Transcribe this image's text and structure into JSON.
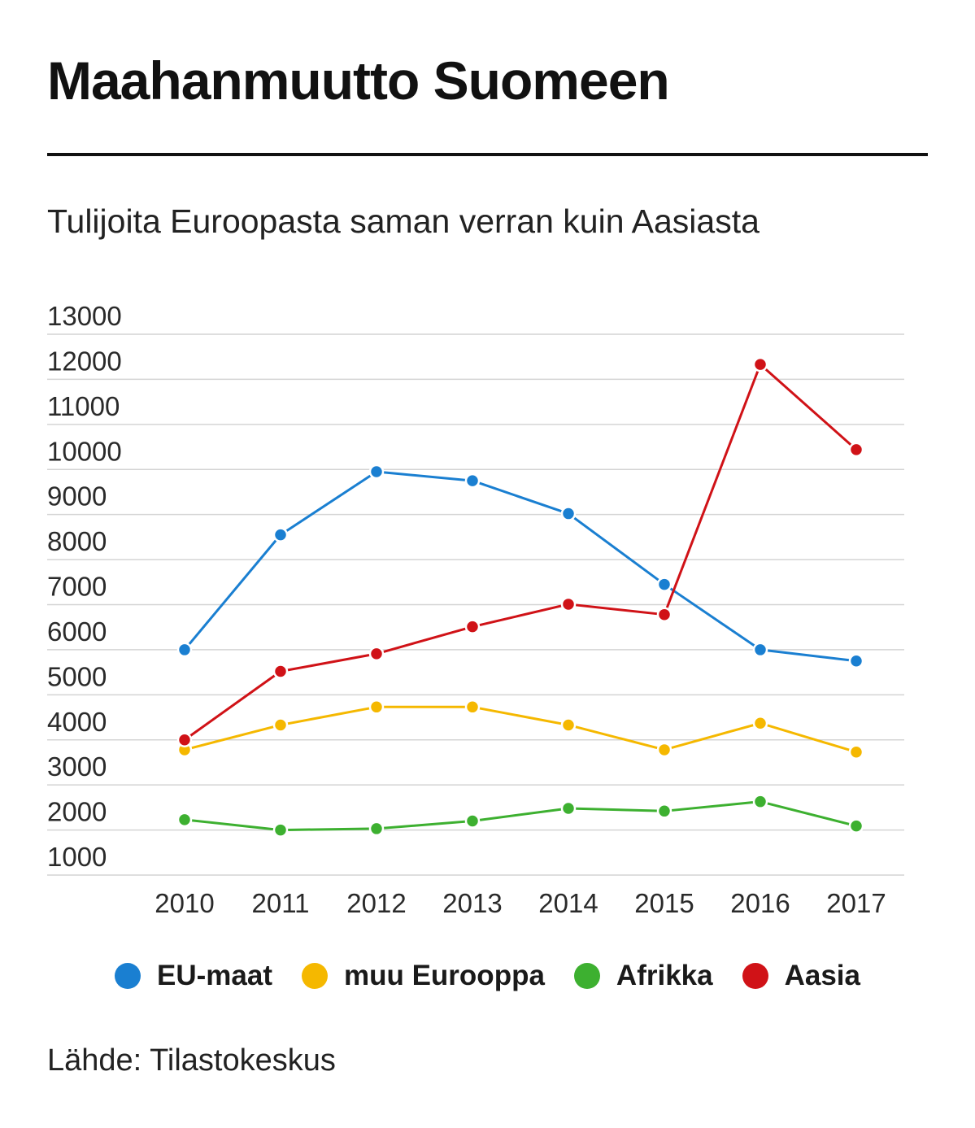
{
  "title": "Maahanmuutto Suomeen",
  "subtitle": "Tulijoita Euroopasta saman verran kuin Aasiasta",
  "source": "Lähde: Tilastokeskus",
  "chart_data": {
    "type": "line",
    "x": [
      "2010",
      "2011",
      "2012",
      "2013",
      "2014",
      "2015",
      "2016",
      "2017"
    ],
    "ylim": [
      1000,
      13000
    ],
    "yticks": [
      13000,
      12000,
      11000,
      10000,
      9000,
      8000,
      7000,
      6000,
      5000,
      4000,
      3000,
      2000,
      1000
    ],
    "grid": true,
    "legend_position": "bottom",
    "series": [
      {
        "name": "EU-maat",
        "color": "#1a7fd1",
        "values": [
          6000,
          8550,
          9950,
          9750,
          9020,
          7450,
          6000,
          5750
        ]
      },
      {
        "name": "muu Eurooppa",
        "color": "#f5b800",
        "values": [
          3780,
          4330,
          4730,
          4730,
          4330,
          3780,
          4370,
          3730
        ]
      },
      {
        "name": "Afrikka",
        "color": "#3db030",
        "values": [
          2230,
          2000,
          2030,
          2200,
          2480,
          2420,
          2630,
          2090
        ]
      },
      {
        "name": "Aasia",
        "color": "#d01217",
        "values": [
          4000,
          5520,
          5910,
          6510,
          7010,
          6780,
          12330,
          10440
        ]
      }
    ]
  }
}
